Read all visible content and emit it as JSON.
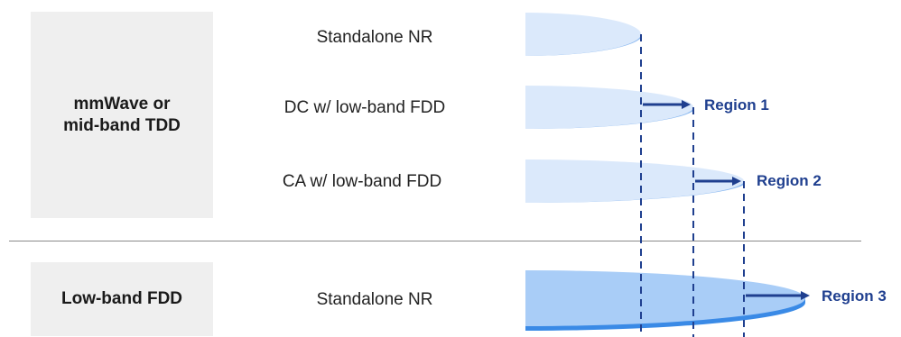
{
  "groups": [
    {
      "label": "mmWave or\nmid-band TDD"
    },
    {
      "label": "Low-band FDD"
    }
  ],
  "rows": [
    {
      "label": "Standalone NR"
    },
    {
      "label": "DC w/ low-band FDD"
    },
    {
      "label": "CA w/ low-band FDD"
    },
    {
      "label": "Standalone NR"
    }
  ],
  "regions": [
    {
      "label": "Region 1"
    },
    {
      "label": "Region 2"
    },
    {
      "label": "Region 3"
    }
  ],
  "colors": {
    "disc_fill_light": "#dbe9fb",
    "disc_rim_light": "#8ab8f0",
    "disc_fill_strong": "#a9cdf7",
    "disc_rim_strong": "#3a8ae6",
    "arrow": "#1f3f8f",
    "dashed_line": "#1f3f8f",
    "group_box": "#efefef",
    "divider": "#8a8a8a"
  }
}
